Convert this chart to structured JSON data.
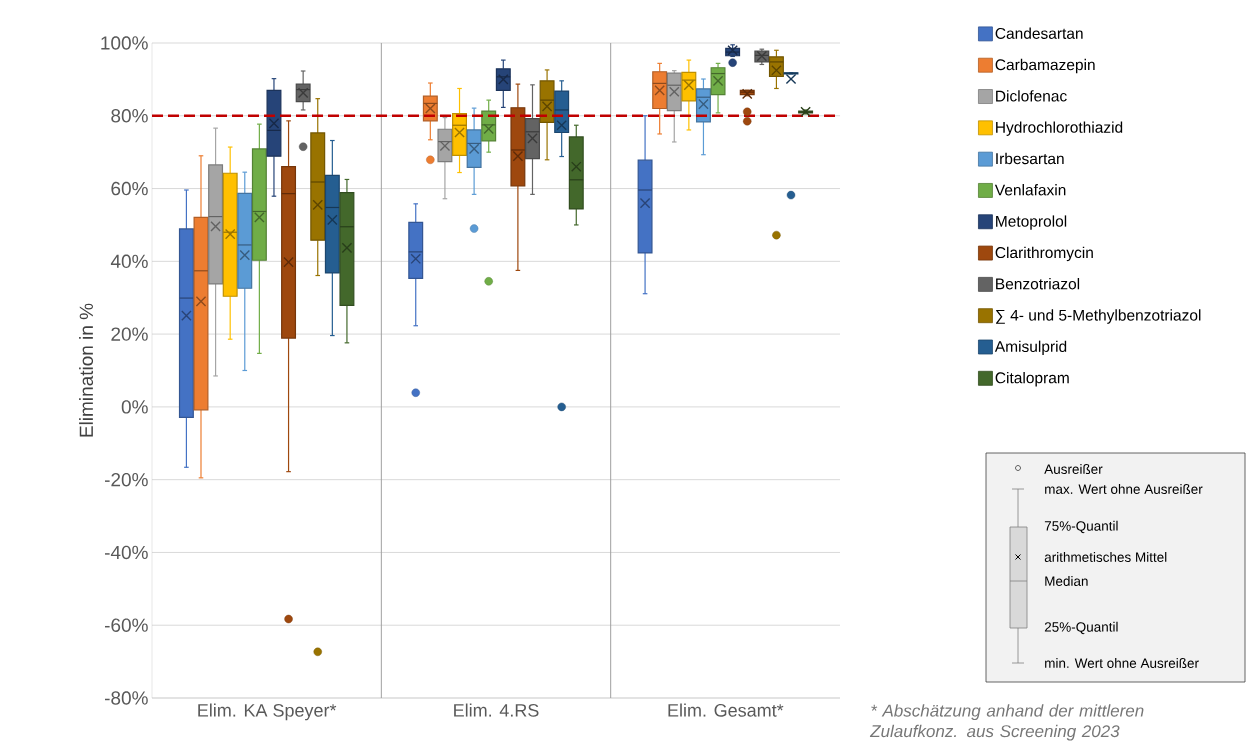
{
  "chart_data": {
    "type": "box",
    "ylabel": "Elimination in %",
    "categories": [
      "Elim. KA Speyer*",
      "Elim. 4.RS",
      "Elim. Gesamt*"
    ],
    "ylim": [
      -80,
      100
    ],
    "yticks": [
      {
        "value": -80,
        "label": "-80%"
      },
      {
        "value": -60,
        "label": "-60%"
      },
      {
        "value": -40,
        "label": "-40%"
      },
      {
        "value": -20,
        "label": "-20%"
      },
      {
        "value": 0,
        "label": "0%"
      },
      {
        "value": 20,
        "label": "20%"
      },
      {
        "value": 40,
        "label": "40%"
      },
      {
        "value": 60,
        "label": "60%"
      },
      {
        "value": 80,
        "label": "80%"
      },
      {
        "value": 100,
        "label": "100%"
      }
    ],
    "grid": true,
    "legend": "right",
    "marker": "circle",
    "ref_lines": [
      {
        "axis": "y",
        "value": 80,
        "color": "#c00000",
        "line_style": "dashed"
      }
    ],
    "annotations": [
      "Ausreißer",
      "max. Wert ohne Ausreißer",
      "75%-Quantil",
      "arithmetisches Mittel",
      "Median",
      "25%-Quantil",
      "min. Wert ohne Ausreißer",
      "* Abschätzung anhand der mittleren Zulaufkonz. aus Screening 2023"
    ],
    "series": [
      {
        "name": "Candesartan",
        "color": "#4472c4",
        "boxes": [
          {
            "low": -16.6,
            "q1": -2.9,
            "median": 29.9,
            "q3": 48.9,
            "high": 59.6,
            "mean": 25.1
          },
          {
            "low": 22.3,
            "q1": 35.3,
            "median": 42.6,
            "q3": 50.7,
            "high": 55.8,
            "mean": 40.7,
            "outliers": [
              3.9
            ]
          },
          {
            "low": 31.1,
            "q1": 42.3,
            "median": 59.6,
            "q3": 67.8,
            "high": 80,
            "mean": 56
          }
        ]
      },
      {
        "name": "Carbamazepin",
        "color": "#ed7d31",
        "boxes": [
          {
            "low": -19.5,
            "q1": -0.8,
            "median": 37.4,
            "q3": 52.1,
            "high": 69,
            "mean": 29
          },
          {
            "low": 73.4,
            "q1": 78.6,
            "median": 83.4,
            "q3": 85.4,
            "high": 89,
            "mean": 82,
            "outliers": [
              67.9
            ]
          },
          {
            "low": 75,
            "q1": 82,
            "median": 88.9,
            "q3": 92.1,
            "high": 94.4,
            "mean": 87
          }
        ]
      },
      {
        "name": "Diclofenac",
        "color": "#a5a5a5",
        "boxes": [
          {
            "low": 8.5,
            "q1": 33.8,
            "median": 52.3,
            "q3": 66.5,
            "high": 76.6,
            "mean": 49.6
          },
          {
            "low": 57.2,
            "q1": 67.4,
            "median": 72.9,
            "q3": 76.3,
            "high": 79.5,
            "mean": 71.7
          },
          {
            "low": 72.8,
            "q1": 81.4,
            "median": 88.4,
            "q3": 91.7,
            "high": 92.4,
            "mean": 86.6
          }
        ]
      },
      {
        "name": "Hydrochlorothiazid",
        "color": "#ffc000",
        "boxes": [
          {
            "low": 18.6,
            "q1": 30.4,
            "median": 48,
            "q3": 64.2,
            "high": 71.4,
            "mean": 47.5
          },
          {
            "low": 64.4,
            "q1": 69.1,
            "median": 77.4,
            "q3": 80.6,
            "high": 87.5,
            "mean": 75.4
          },
          {
            "low": 76.1,
            "q1": 84.1,
            "median": 89.8,
            "q3": 91.9,
            "high": 95.3,
            "mean": 88.4
          }
        ]
      },
      {
        "name": "Irbesartan",
        "color": "#5b9bd5",
        "boxes": [
          {
            "low": 10,
            "q1": 32.6,
            "median": 44.5,
            "q3": 58.7,
            "high": 64.5,
            "mean": 41.7
          },
          {
            "low": 58.4,
            "q1": 65.8,
            "median": 72.4,
            "q3": 76.1,
            "high": 82.1,
            "mean": 70.9,
            "outliers": [
              49
            ]
          },
          {
            "low": 69.3,
            "q1": 78.3,
            "median": 85.1,
            "q3": 87.4,
            "high": 90.1,
            "mean": 83.2
          }
        ]
      },
      {
        "name": "Venlafaxin",
        "color": "#70ad47",
        "boxes": [
          {
            "low": 14.7,
            "q1": 40.3,
            "median": 53.7,
            "q3": 70.9,
            "high": 77.7,
            "mean": 52.1
          },
          {
            "low": 70,
            "q1": 73.1,
            "median": 77.5,
            "q3": 81.3,
            "high": 84.3,
            "mean": 76.4,
            "outliers": [
              34.5
            ]
          },
          {
            "low": 80.8,
            "q1": 85.8,
            "median": 91.6,
            "q3": 93.2,
            "high": 94.4,
            "mean": 89.6
          }
        ]
      },
      {
        "name": "Metoprolol",
        "color": "#264478",
        "boxes": [
          {
            "low": 57.9,
            "q1": 68.9,
            "median": 76,
            "q3": 87,
            "high": 90.2,
            "mean": 77.9
          },
          {
            "low": 82.3,
            "q1": 87,
            "median": 90.7,
            "q3": 92.9,
            "high": 95.3,
            "mean": 90
          },
          {
            "low": 96.3,
            "q1": 96.5,
            "median": 97.5,
            "q3": 98.5,
            "high": 99.5,
            "mean": 98,
            "outliers": [
              94.6
            ]
          }
        ]
      },
      {
        "name": "Clarithromycin",
        "color": "#9e480e",
        "boxes": [
          {
            "low": -17.8,
            "q1": 18.9,
            "median": 58.6,
            "q3": 66,
            "high": 78.6,
            "mean": 39.8,
            "outliers": [
              -58.3
            ]
          },
          {
            "low": 37.5,
            "q1": 60.7,
            "median": 70.6,
            "q3": 82.2,
            "high": 88.7,
            "mean": 68.9
          },
          {
            "low": 85.5,
            "q1": 85.8,
            "median": 86.5,
            "q3": 87,
            "high": 87,
            "mean": 86,
            "outliers": [
              81.1,
              78.5
            ]
          }
        ]
      },
      {
        "name": "Benzotriazol",
        "color": "#636363",
        "boxes": [
          {
            "low": 81.6,
            "q1": 83.9,
            "median": 87.2,
            "q3": 88.7,
            "high": 92.3,
            "mean": 86.3,
            "outliers": [
              71.5
            ]
          },
          {
            "low": 58.4,
            "q1": 68.2,
            "median": 75.6,
            "q3": 79.2,
            "high": 88.5,
            "mean": 73.8
          },
          {
            "low": 94.1,
            "q1": 94.8,
            "median": 96.6,
            "q3": 97.8,
            "high": 98.3,
            "mean": 96.4
          }
        ]
      },
      {
        "name": "∑ 4- und 5-Methylbenzotriazol",
        "color": "#997300",
        "boxes": [
          {
            "low": 36.1,
            "q1": 45.8,
            "median": 61.8,
            "q3": 75.3,
            "high": 84.7,
            "mean": 55.5,
            "outliers": [
              -67.3
            ]
          },
          {
            "low": 67.9,
            "q1": 78.2,
            "median": 84.3,
            "q3": 89.6,
            "high": 92.6,
            "mean": 82.6
          },
          {
            "low": 87.5,
            "q1": 90.8,
            "median": 94.8,
            "q3": 96.2,
            "high": 98,
            "mean": 92.5,
            "outliers": [
              47.2
            ]
          }
        ]
      },
      {
        "name": "Amisulprid",
        "color": "#255e91",
        "boxes": [
          {
            "low": 19.6,
            "q1": 36.8,
            "median": 54.8,
            "q3": 63.6,
            "high": 73.2,
            "mean": 51.4
          },
          {
            "low": 68.8,
            "q1": 75.4,
            "median": 81.6,
            "q3": 86.8,
            "high": 89.6,
            "mean": 77.4,
            "outliers": [
              0
            ]
          },
          {
            "low": 91.5,
            "q1": 91.5,
            "median": 91.7,
            "q3": 91.8,
            "high": 91.8,
            "mean": 90.1,
            "outliers": [
              58.2
            ]
          }
        ]
      },
      {
        "name": "Citalopram",
        "color": "#43682b",
        "boxes": [
          {
            "low": 17.6,
            "q1": 27.9,
            "median": 49.5,
            "q3": 58.9,
            "high": 62.5,
            "mean": 43.7
          },
          {
            "low": 50,
            "q1": 54.4,
            "median": 62.4,
            "q3": 74.2,
            "high": 77.4,
            "mean": 66
          },
          {
            "low": 80.5,
            "q1": 80.8,
            "median": 81,
            "q3": 81.3,
            "high": 81.6,
            "mean": 81.1
          }
        ]
      }
    ]
  }
}
